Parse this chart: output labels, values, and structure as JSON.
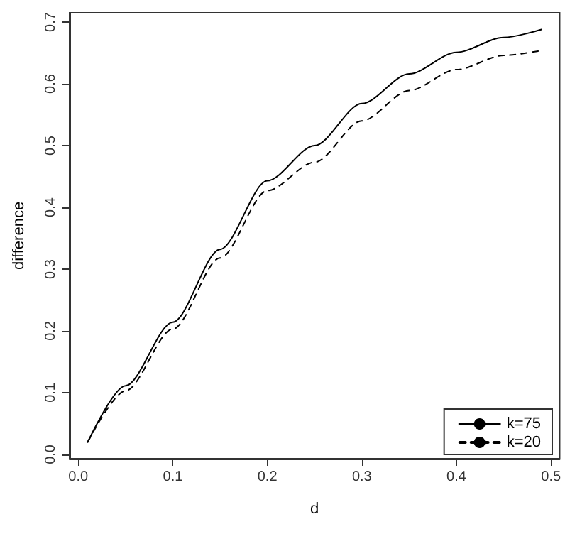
{
  "chart_data": {
    "type": "line",
    "xlabel": "d",
    "ylabel": "difference",
    "x": [
      0.01,
      0.05,
      0.1,
      0.15,
      0.2,
      0.25,
      0.3,
      0.35,
      0.4,
      0.45,
      0.49
    ],
    "series": [
      {
        "name": "k=75",
        "color": "#000000",
        "line_style": "solid",
        "values": [
          0.02,
          0.111,
          0.214,
          0.332,
          0.443,
          0.5,
          0.568,
          0.616,
          0.651,
          0.675,
          0.688
        ]
      },
      {
        "name": "k=20",
        "color": "#000000",
        "line_style": "dashed",
        "values": [
          0.02,
          0.103,
          0.203,
          0.318,
          0.427,
          0.473,
          0.54,
          0.589,
          0.623,
          0.646,
          0.654
        ]
      }
    ],
    "xlim": [
      -0.0092,
      0.5092
    ],
    "xticks": [
      {
        "value": 0,
        "label": "0.0"
      },
      0.1,
      0.2,
      0.3,
      0.4,
      0.5
    ],
    "ylim": [
      -0.007,
      0.715
    ],
    "yticks": [
      {
        "value": 0,
        "label": "0.0"
      },
      0.1,
      0.2,
      0.3,
      0.4,
      0.5,
      0.6,
      0.7
    ],
    "grid": false,
    "legend": "bottom right",
    "marker": "none"
  }
}
